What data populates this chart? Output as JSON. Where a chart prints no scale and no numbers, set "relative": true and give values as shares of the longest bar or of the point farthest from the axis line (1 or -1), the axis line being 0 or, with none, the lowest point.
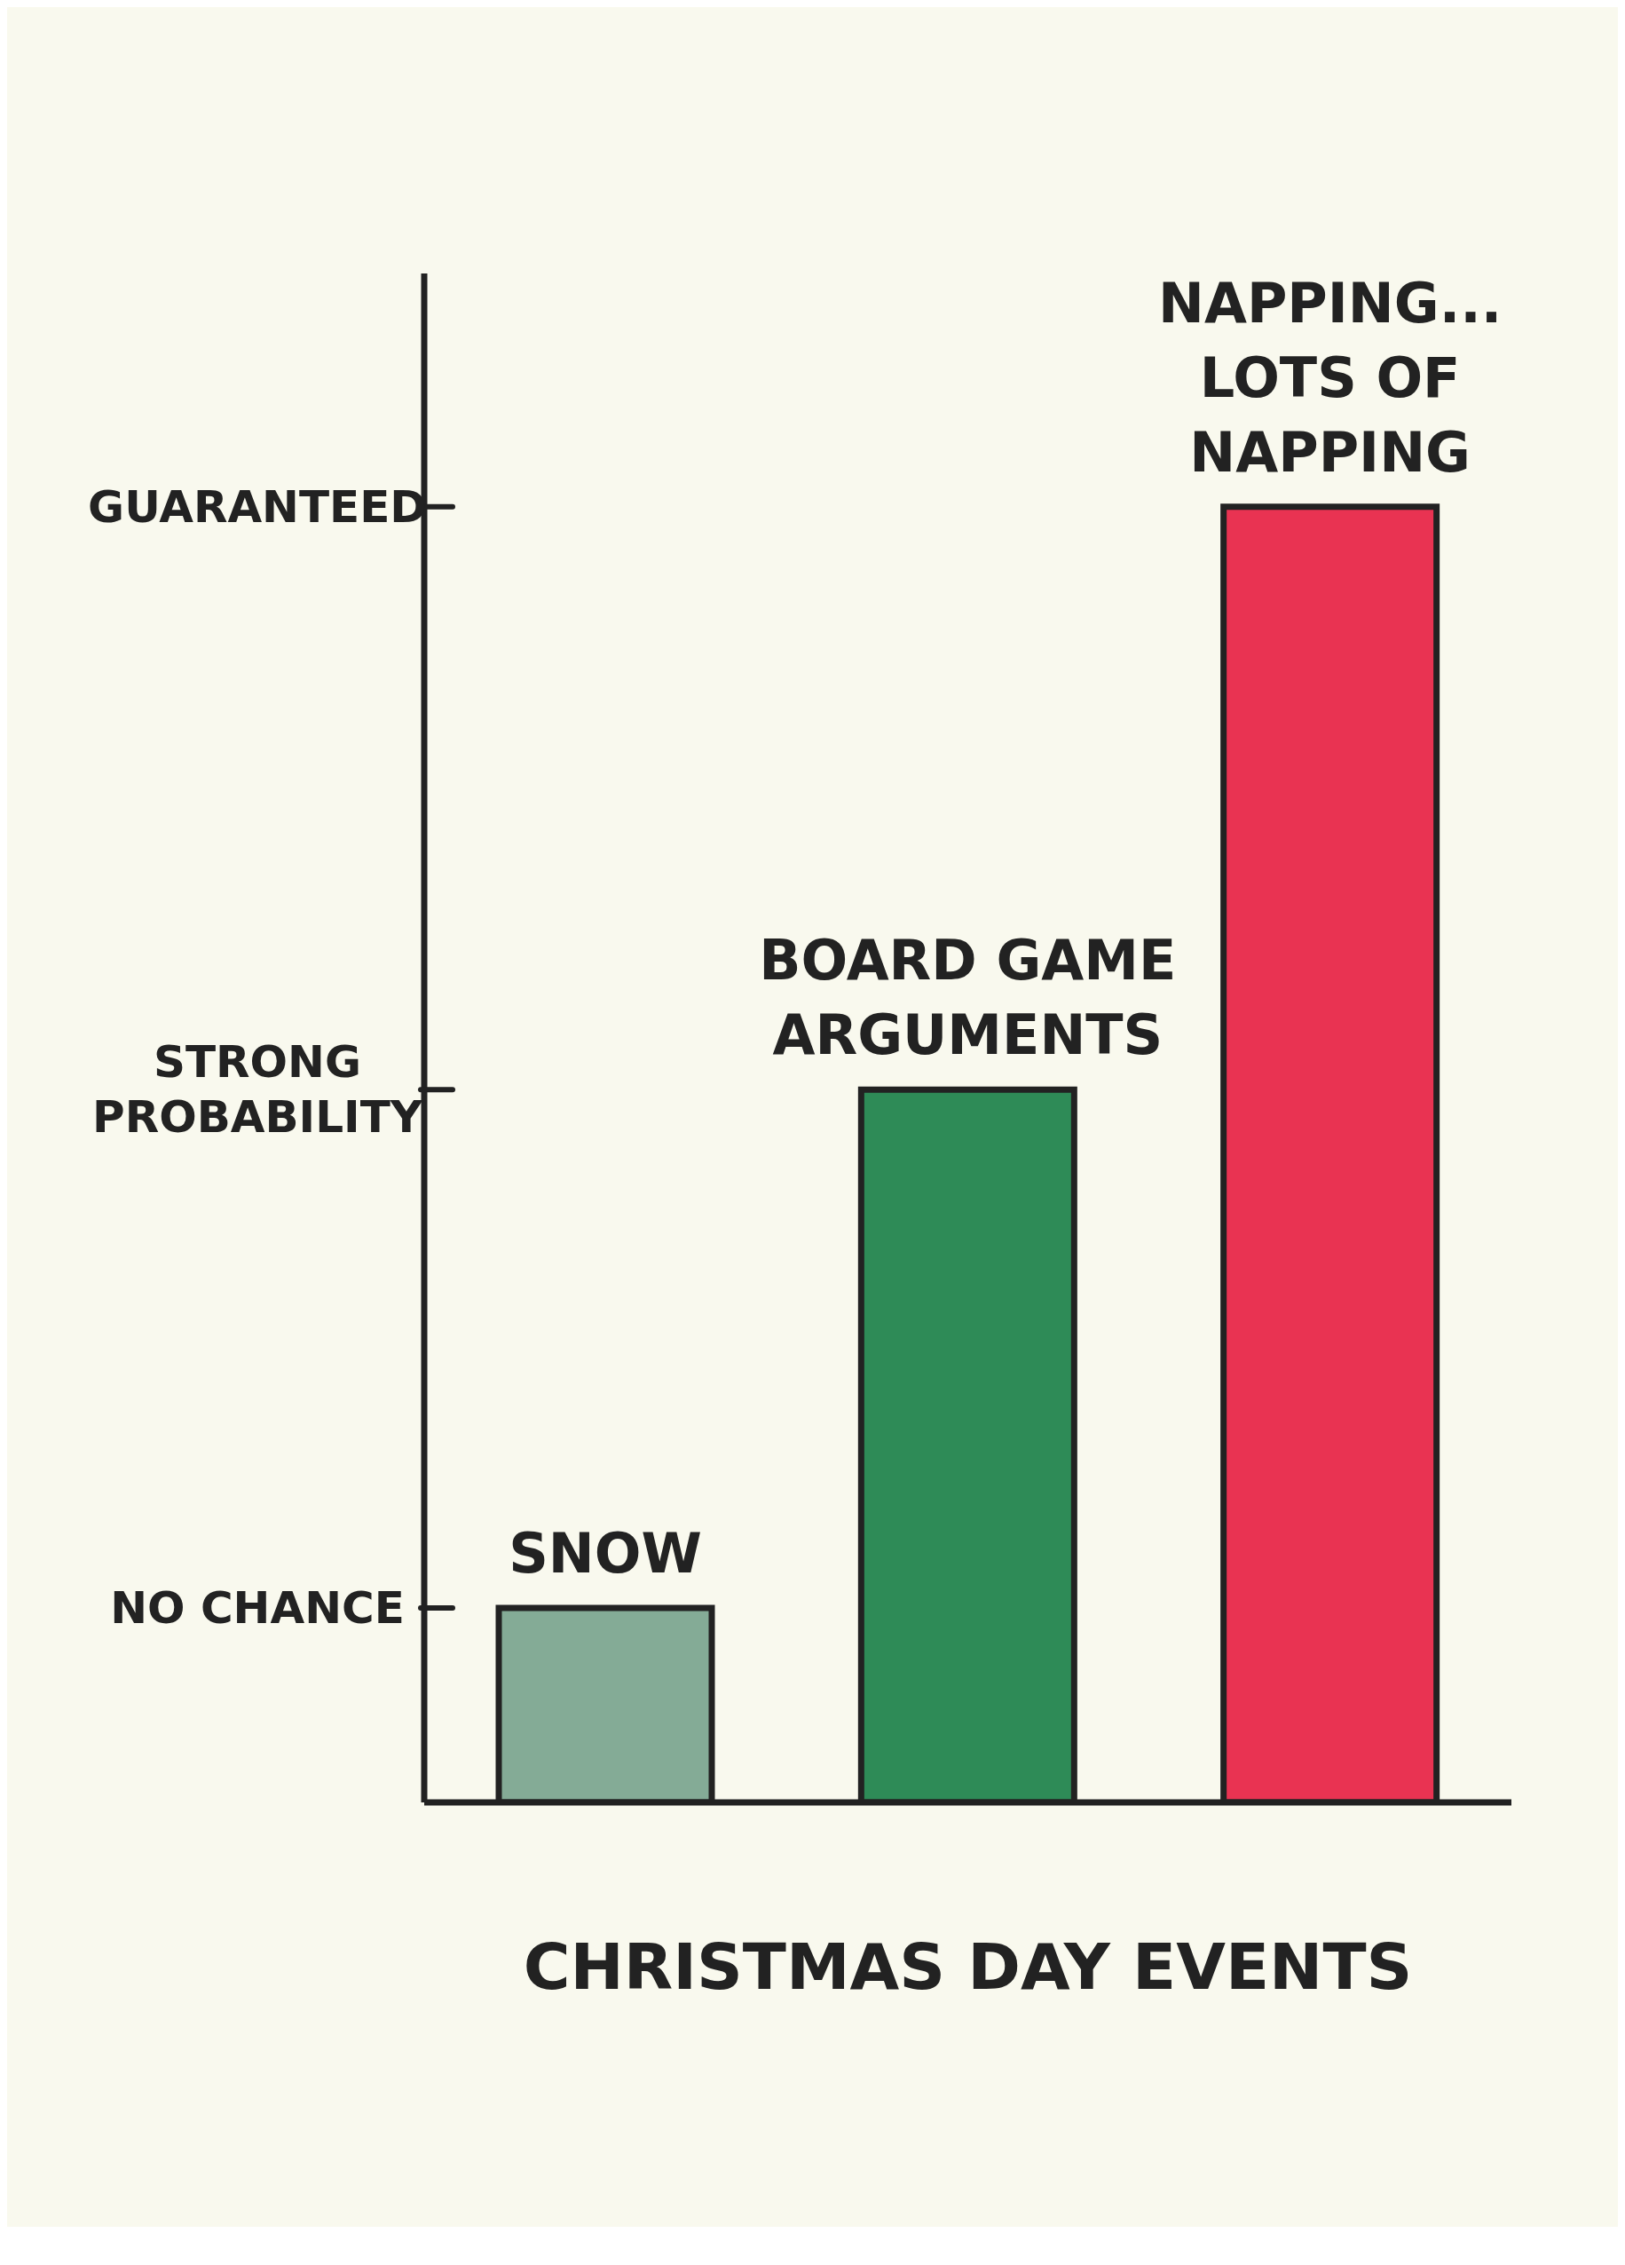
{
  "chart_data": {
    "type": "bar",
    "xlabel": "CHRISTMAS DAY EVENTS",
    "relative": true,
    "categories": [
      "SNOW",
      "BOARD GAME ARGUMENTS",
      "NAPPING... LOTS OF NAPPING"
    ],
    "values": [
      0.15,
      0.55,
      1
    ],
    "colors": [
      "#84ab96",
      "#2e8b57",
      "#e93352"
    ],
    "annotations": [
      "NO CHANCE",
      "STRONG PROBABILITY",
      "GUARANTEED"
    ]
  }
}
